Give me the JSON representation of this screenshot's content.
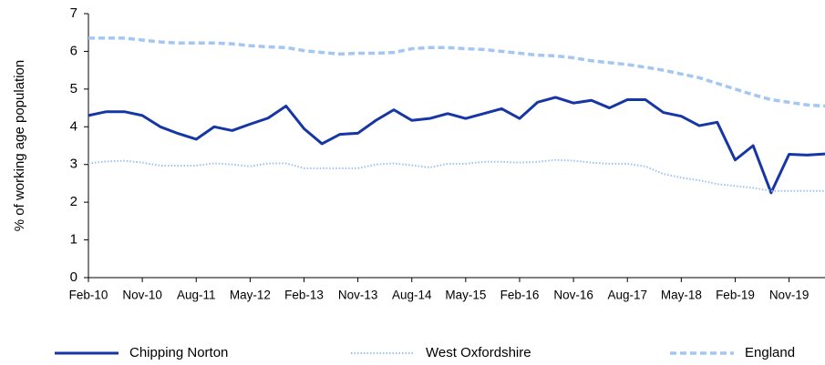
{
  "chart_data": {
    "type": "line",
    "ylabel": "% of working age population",
    "categories": [
      "Feb-10",
      null,
      null,
      "Nov-10",
      null,
      null,
      "Aug-11",
      null,
      null,
      "May-12",
      null,
      null,
      "Feb-13",
      null,
      null,
      "Nov-13",
      null,
      null,
      "Aug-14",
      null,
      null,
      "May-15",
      null,
      null,
      "Feb-16",
      null,
      null,
      "Nov-16",
      null,
      null,
      "Aug-17",
      null,
      null,
      "May-18",
      null,
      null,
      "Feb-19",
      null,
      null,
      "Nov-19",
      null,
      null
    ],
    "series": [
      {
        "name": "Chipping Norton",
        "color": "#1736a6",
        "style": "solid",
        "values": [
          4.3,
          4.4,
          4.4,
          4.3,
          4.0,
          3.82,
          3.67,
          4.0,
          3.9,
          4.07,
          4.23,
          4.55,
          3.95,
          3.55,
          3.8,
          3.83,
          4.17,
          4.45,
          4.17,
          4.22,
          4.35,
          4.22,
          4.35,
          4.48,
          4.22,
          4.65,
          4.78,
          4.63,
          4.7,
          4.5,
          4.72,
          4.72,
          4.38,
          4.28,
          4.03,
          4.12,
          3.12,
          3.5,
          2.25,
          3.27,
          3.25,
          3.28
        ]
      },
      {
        "name": "West Oxfordshire",
        "color": "#9cc3ef",
        "style": "dotted",
        "values": [
          3.03,
          3.08,
          3.1,
          3.05,
          2.97,
          2.97,
          2.97,
          3.03,
          3.0,
          2.95,
          3.03,
          3.03,
          2.9,
          2.9,
          2.9,
          2.9,
          3.0,
          3.03,
          2.98,
          2.92,
          3.02,
          3.02,
          3.07,
          3.07,
          3.05,
          3.07,
          3.12,
          3.1,
          3.05,
          3.02,
          3.02,
          2.95,
          2.75,
          2.65,
          2.58,
          2.48,
          2.43,
          2.38,
          2.3,
          2.3,
          2.3,
          2.3
        ]
      },
      {
        "name": "England",
        "color": "#a3c7f2",
        "style": "dashed",
        "values": [
          6.35,
          6.35,
          6.35,
          6.3,
          6.25,
          6.22,
          6.22,
          6.22,
          6.2,
          6.15,
          6.12,
          6.1,
          6.02,
          5.97,
          5.93,
          5.95,
          5.95,
          5.97,
          6.07,
          6.1,
          6.1,
          6.07,
          6.05,
          6.0,
          5.95,
          5.9,
          5.88,
          5.83,
          5.75,
          5.7,
          5.65,
          5.58,
          5.5,
          5.4,
          5.3,
          5.15,
          5.0,
          4.85,
          4.72,
          4.65,
          4.58,
          4.55
        ]
      }
    ],
    "ylim": [
      0,
      7
    ],
    "yticks": [
      0,
      1,
      2,
      3,
      4,
      5,
      6,
      7
    ],
    "grid": false,
    "legend": "bottom"
  }
}
